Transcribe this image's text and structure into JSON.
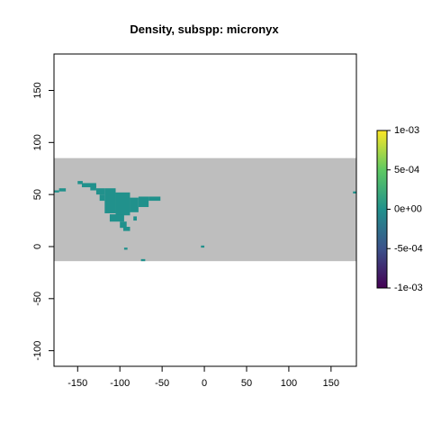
{
  "chart_data": {
    "type": "heatmap",
    "title": "Density, subspp: micronyx",
    "xlabel": "",
    "ylabel": "",
    "xlim": [
      -178,
      180
    ],
    "ylim": [
      -115,
      185
    ],
    "x_ticks": [
      -150,
      -100,
      -50,
      0,
      50,
      100,
      150
    ],
    "y_ticks": [
      -100,
      -50,
      0,
      50,
      100,
      150
    ],
    "raster_extent": {
      "x": [
        -180,
        180
      ],
      "y": [
        -14,
        85
      ]
    },
    "grid": false,
    "legend": {
      "position": "right",
      "range": [
        -0.001,
        0.001
      ],
      "labels": [
        "1e-03",
        "5e-04",
        "0e+00",
        "-5e-04",
        "-1e-03"
      ],
      "values": [
        0.001,
        0.0005,
        0,
        -0.0005,
        -0.001
      ],
      "palette": [
        "#fde725",
        "#5ec962",
        "#21918c",
        "#3b528b",
        "#440154"
      ]
    },
    "background_color": "#bebebe",
    "presence_color": "#21918c",
    "presence_cells": [
      {
        "x": [
          -178,
          -172
        ],
        "y": [
          52,
          54
        ]
      },
      {
        "x": [
          -172,
          -164
        ],
        "y": [
          53,
          56
        ]
      },
      {
        "x": [
          -150,
          -144
        ],
        "y": [
          60,
          63
        ]
      },
      {
        "x": [
          -145,
          -128
        ],
        "y": [
          57,
          61
        ]
      },
      {
        "x": [
          -135,
          -128
        ],
        "y": [
          54,
          59
        ]
      },
      {
        "x": [
          -128,
          -118
        ],
        "y": [
          50,
          56
        ]
      },
      {
        "x": [
          -124,
          -118
        ],
        "y": [
          44,
          50
        ]
      },
      {
        "x": [
          -118,
          -105
        ],
        "y": [
          32,
          56
        ]
      },
      {
        "x": [
          -105,
          -88
        ],
        "y": [
          30,
          52
        ]
      },
      {
        "x": [
          -88,
          -78
        ],
        "y": [
          33,
          47
        ]
      },
      {
        "x": [
          -78,
          -66
        ],
        "y": [
          38,
          48
        ]
      },
      {
        "x": [
          -66,
          -52
        ],
        "y": [
          44,
          48
        ]
      },
      {
        "x": [
          -112,
          -95
        ],
        "y": [
          24,
          31
        ]
      },
      {
        "x": [
          -100,
          -92
        ],
        "y": [
          18,
          24
        ]
      },
      {
        "x": [
          -96,
          -88
        ],
        "y": [
          15,
          19
        ]
      },
      {
        "x": [
          -84,
          -80
        ],
        "y": [
          25,
          29
        ]
      },
      {
        "x": [
          -95,
          -91
        ],
        "y": [
          -3,
          -1
        ]
      },
      {
        "x": [
          -75,
          -70
        ],
        "y": [
          -14,
          -12
        ]
      },
      {
        "x": [
          -4,
          0
        ],
        "y": [
          -1,
          1
        ]
      },
      {
        "x": [
          176,
          180
        ],
        "y": [
          51,
          53
        ]
      }
    ]
  }
}
